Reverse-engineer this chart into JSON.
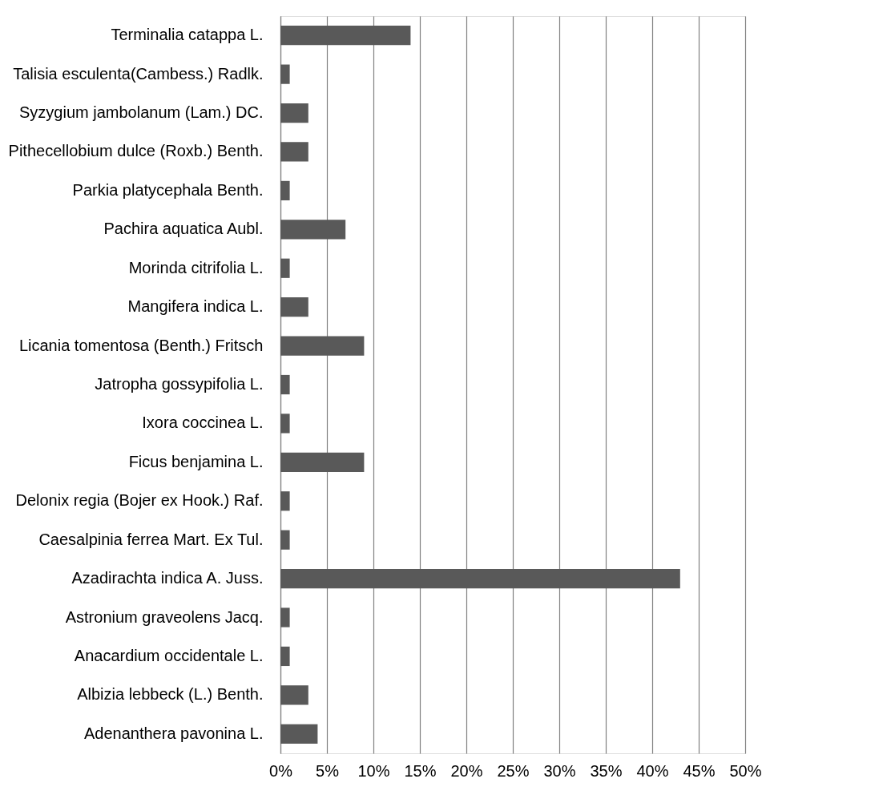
{
  "chart_data": {
    "type": "bar",
    "orientation": "horizontal",
    "color": "#595959",
    "categories": [
      "Terminalia catappa L.",
      "Talisia esculenta(Cambess.) Radlk.",
      "Syzygium jambolanum (Lam.) DC.",
      "Pithecellobium dulce (Roxb.) Benth.",
      "Parkia platycephala Benth.",
      "Pachira aquatica Aubl.",
      "Morinda citrifolia L.",
      "Mangifera indica L.",
      "Licania tomentosa (Benth.) Fritsch",
      "Jatropha gossypifolia L.",
      "Ixora coccinea L.",
      "Ficus benjamina L.",
      "Delonix regia (Bojer ex Hook.) Raf.",
      "Caesalpinia ferrea Mart. Ex Tul.",
      "Azadirachta indica A. Juss.",
      "Astronium graveolens Jacq.",
      "Anacardium occidentale L.",
      "Albizia lebbeck (L.) Benth.",
      "Adenanthera pavonina L."
    ],
    "values": [
      14,
      1,
      3,
      3,
      1,
      7,
      1,
      3,
      9,
      1,
      1,
      9,
      1,
      1,
      43,
      1,
      1,
      3,
      4
    ],
    "xlim": [
      0,
      50
    ],
    "xticks": [
      {
        "value": 0,
        "label": "0%"
      },
      {
        "value": 5,
        "label": "5%"
      },
      {
        "value": 10,
        "label": "10%"
      },
      {
        "value": 15,
        "label": "15%"
      },
      {
        "value": 20,
        "label": "20%"
      },
      {
        "value": 25,
        "label": "25%"
      },
      {
        "value": 30,
        "label": "30%"
      },
      {
        "value": 35,
        "label": "35%"
      },
      {
        "value": 40,
        "label": "40%"
      },
      {
        "value": 45,
        "label": "45%"
      },
      {
        "value": 50,
        "label": "50%"
      }
    ],
    "grid": "x"
  }
}
